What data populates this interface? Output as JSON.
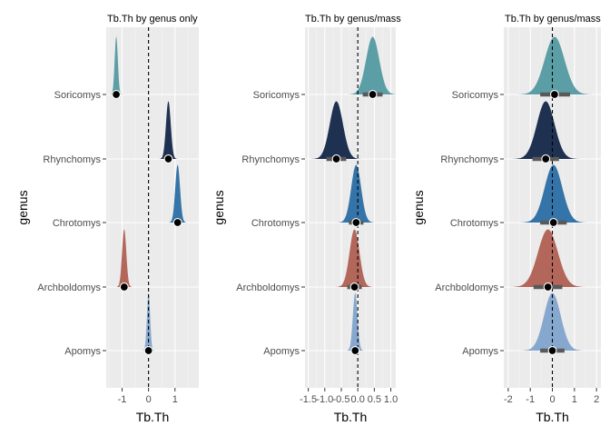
{
  "chart_data": [
    {
      "type": "density-halfeye",
      "title": "Tb.Th by genus only",
      "xlabel": "Tb.Th",
      "ylabel": "genus",
      "xlim": [
        -1.6,
        1.9
      ],
      "xticks": [
        -1,
        0,
        1
      ],
      "xtick_labels": [
        "-1",
        "0",
        "1"
      ],
      "reference_x": 0,
      "grid": true,
      "categories": [
        "Soricomys",
        "Rhynchomys",
        "Chrotomys",
        "Archboldomys",
        "Apomys"
      ],
      "series": [
        {
          "genus": "Soricomys",
          "color": "#5b9ea6",
          "median": -1.22,
          "sd": 0.06,
          "lo": -1.3,
          "hi": -1.14
        },
        {
          "genus": "Rhynchomys",
          "color": "#1f3150",
          "median": 0.75,
          "sd": 0.09,
          "lo": 0.62,
          "hi": 0.87
        },
        {
          "genus": "Chrotomys",
          "color": "#3474a8",
          "median": 1.1,
          "sd": 0.09,
          "lo": 0.98,
          "hi": 1.22
        },
        {
          "genus": "Archboldomys",
          "color": "#b3675b",
          "median": -0.92,
          "sd": 0.08,
          "lo": -1.04,
          "hi": -0.8
        },
        {
          "genus": "Apomys",
          "color": "#86a8cf",
          "median": 0.0,
          "sd": 0.06,
          "lo": -0.08,
          "hi": 0.08
        }
      ]
    },
    {
      "type": "density-halfeye",
      "title": "Tb.Th by genus/mass",
      "xlabel": "Tb.Th",
      "ylabel": "genus",
      "xlim": [
        -1.6,
        1.15
      ],
      "xticks": [
        -1.5,
        -1.0,
        -0.5,
        0.0,
        0.5,
        1.0
      ],
      "xtick_labels": [
        "-1.5",
        "-1.0",
        "-0.5",
        "0.0",
        "0.5",
        "1.0"
      ],
      "reference_x": 0,
      "grid": true,
      "categories": [
        "Soricomys",
        "Rhynchomys",
        "Chrotomys",
        "Archboldomys",
        "Apomys"
      ],
      "series": [
        {
          "genus": "Soricomys",
          "color": "#5b9ea6",
          "median": 0.45,
          "sd": 0.2,
          "lo": 0.15,
          "hi": 0.75
        },
        {
          "genus": "Rhynchomys",
          "color": "#1f3150",
          "median": -0.65,
          "sd": 0.2,
          "lo": -0.95,
          "hi": -0.35
        },
        {
          "genus": "Chrotomys",
          "color": "#3474a8",
          "median": -0.05,
          "sd": 0.15,
          "lo": -0.27,
          "hi": 0.17
        },
        {
          "genus": "Archboldomys",
          "color": "#b3675b",
          "median": -0.1,
          "sd": 0.15,
          "lo": -0.32,
          "hi": 0.12
        },
        {
          "genus": "Apomys",
          "color": "#86a8cf",
          "median": -0.08,
          "sd": 0.07,
          "lo": -0.18,
          "hi": 0.02
        }
      ]
    },
    {
      "type": "density-halfeye",
      "title": "Tb.Th by genus/mass",
      "xlabel": "Tb.Th",
      "ylabel": "genus",
      "xlim": [
        -2.2,
        2.2
      ],
      "xticks": [
        -2,
        -1,
        0,
        1,
        2
      ],
      "xtick_labels": [
        "-2",
        "-1",
        "0",
        "1",
        "2"
      ],
      "reference_x": 0,
      "grid": true,
      "categories": [
        "Soricomys",
        "Rhynchomys",
        "Chrotomys",
        "Archboldomys",
        "Apomys"
      ],
      "series": [
        {
          "genus": "Soricomys",
          "color": "#5b9ea6",
          "median": 0.1,
          "sd": 0.45,
          "lo": -0.55,
          "hi": 0.8
        },
        {
          "genus": "Rhynchomys",
          "color": "#1f3150",
          "median": -0.3,
          "sd": 0.4,
          "lo": -0.9,
          "hi": 0.3
        },
        {
          "genus": "Chrotomys",
          "color": "#3474a8",
          "median": 0.05,
          "sd": 0.4,
          "lo": -0.55,
          "hi": 0.65
        },
        {
          "genus": "Archboldomys",
          "color": "#b3675b",
          "median": -0.2,
          "sd": 0.45,
          "lo": -0.85,
          "hi": 0.45
        },
        {
          "genus": "Apomys",
          "color": "#86a8cf",
          "median": 0.0,
          "sd": 0.38,
          "lo": -0.55,
          "hi": 0.55
        }
      ]
    }
  ]
}
